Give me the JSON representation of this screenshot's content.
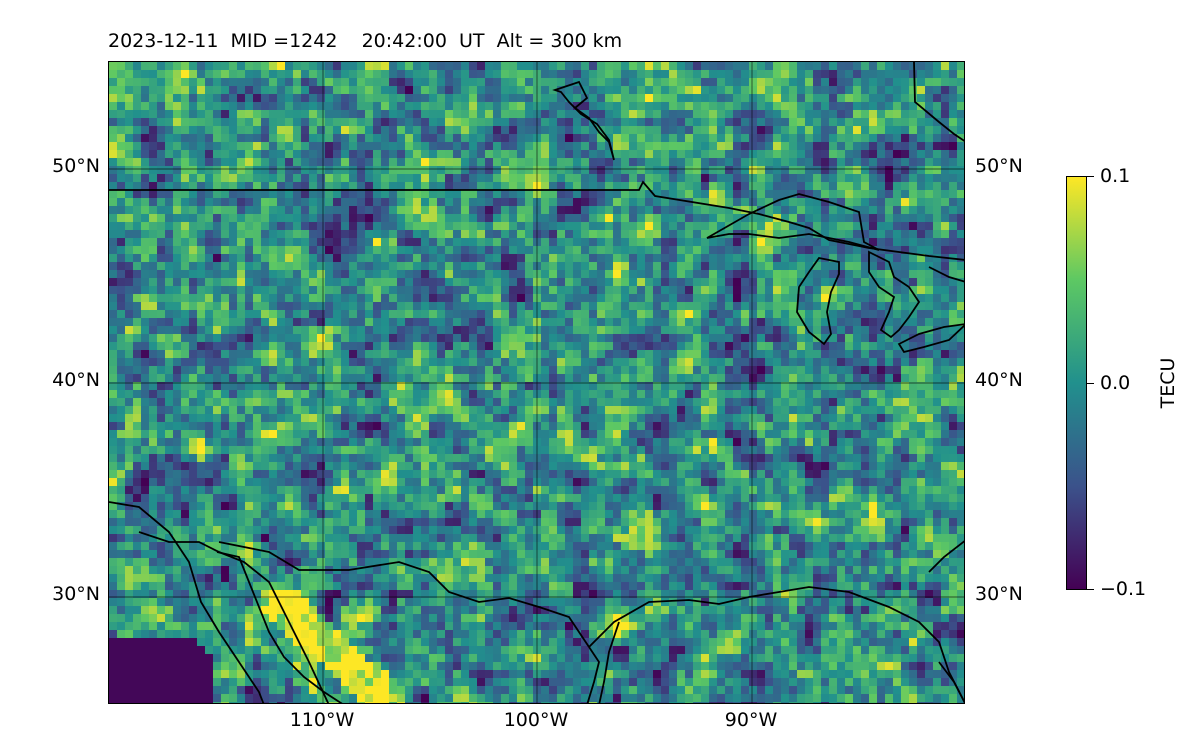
{
  "title": "2023-12-11  MID =1242    20:42:00  UT  Alt = 300 km",
  "map": {
    "lat_labels": [
      "50°N",
      "40°N",
      "30°N"
    ],
    "lat_values": [
      50,
      40,
      30
    ],
    "lon_labels": [
      "110°W",
      "100°W",
      "90°W"
    ],
    "lon_values": [
      -110,
      -100,
      -90
    ],
    "lat_range": [
      25,
      55
    ],
    "lon_range": [
      -120,
      -80
    ],
    "grid": true,
    "field": "TEC perturbation",
    "colormap": "viridis"
  },
  "colorbar": {
    "label": "TECU",
    "ticks": [
      "0.1",
      "0.0",
      "−0.1"
    ],
    "min": -0.1,
    "max": 0.1,
    "colors": [
      "#440154",
      "#3b528b",
      "#21908d",
      "#5dc863",
      "#fde725"
    ]
  }
}
